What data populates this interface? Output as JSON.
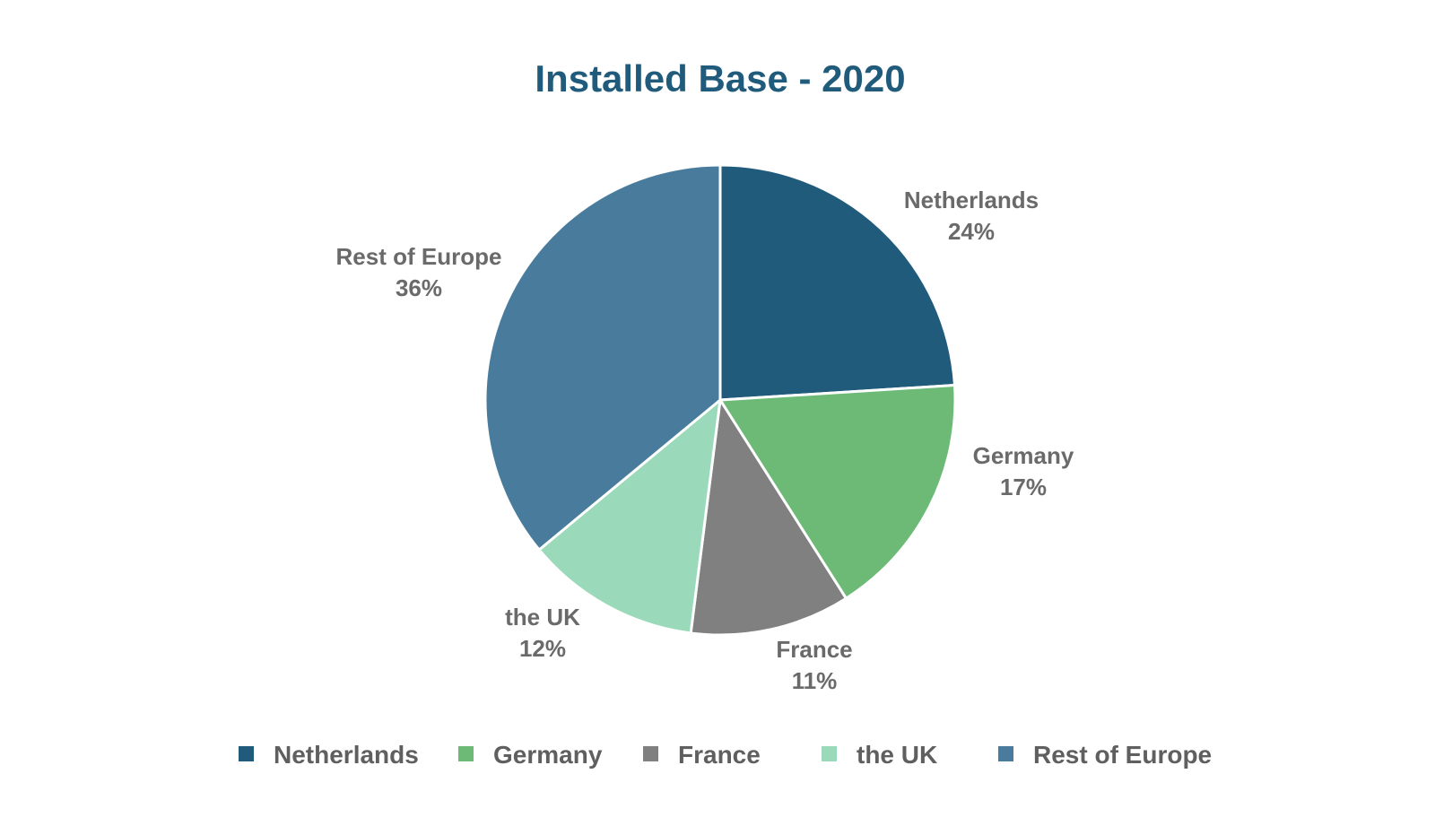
{
  "chart_data": {
    "type": "pie",
    "title": "Installed Base - 2020",
    "categories": [
      "Netherlands",
      "Germany",
      "France",
      "the UK",
      "Rest of Europe"
    ],
    "values": [
      24,
      17,
      11,
      12,
      36
    ],
    "value_labels": [
      "24%",
      "17%",
      "11%",
      "12%",
      "36%"
    ],
    "colors": [
      "#215b7c",
      "#6dba76",
      "#808080",
      "#9adaba",
      "#497c9c"
    ],
    "start_angle": "12 o'clock",
    "direction": "clockwise",
    "legend": {
      "position": "bottom",
      "entries": [
        "Netherlands",
        "Germany",
        "France",
        "the UK",
        "Rest of Europe"
      ]
    }
  }
}
